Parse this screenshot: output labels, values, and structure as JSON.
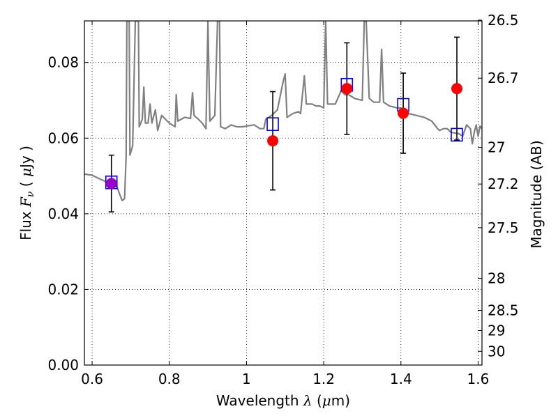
{
  "chart_data": {
    "type": "scatter",
    "title": "",
    "xlabel_parts": [
      "Wavelength  ",
      "λ",
      " (",
      "μ",
      "m)"
    ],
    "ylabel_parts": [
      "Flux  ",
      "F",
      "ν",
      "  ( ",
      "μ",
      "Jy )"
    ],
    "y2label": "Magnitude (AB)",
    "xlim": [
      0.58,
      1.61
    ],
    "ylim": [
      0.0,
      0.091
    ],
    "grid": true,
    "x_ticks": [
      {
        "v": 0.6,
        "label": "0.6"
      },
      {
        "v": 0.8,
        "label": "0.8"
      },
      {
        "v": 1.0,
        "label": "1"
      },
      {
        "v": 1.2,
        "label": "1.2"
      },
      {
        "v": 1.4,
        "label": "1.4"
      },
      {
        "v": 1.6,
        "label": "1.6"
      }
    ],
    "y_ticks": [
      {
        "v": 0.0,
        "label": "0.00"
      },
      {
        "v": 0.02,
        "label": "0.02"
      },
      {
        "v": 0.04,
        "label": "0.04"
      },
      {
        "v": 0.06,
        "label": "0.06"
      },
      {
        "v": 0.08,
        "label": "0.08"
      }
    ],
    "y2_ticks": [
      "26.5",
      "26.7",
      "27",
      "27.2",
      "27.5",
      "28",
      "28.5",
      "29",
      "30"
    ],
    "colors": {
      "spectrum": "#808080",
      "observed": "#ff0000",
      "model": "#0000ff",
      "overlap": "#9900cc",
      "errorbar": "#000000"
    },
    "series": [
      {
        "kind": "observed_photometry",
        "points": [
          {
            "x": 0.65,
            "y": 0.048,
            "err": 0.0075
          },
          {
            "x": 1.068,
            "y": 0.0593,
            "err": 0.013
          },
          {
            "x": 1.26,
            "y": 0.0731,
            "err": 0.0121
          },
          {
            "x": 1.406,
            "y": 0.0666,
            "err": 0.0106
          },
          {
            "x": 1.545,
            "y": 0.0731,
            "err": 0.0136
          }
        ]
      },
      {
        "kind": "model_photometry",
        "points": [
          {
            "x": 0.65,
            "y": 0.0483
          },
          {
            "x": 1.068,
            "y": 0.0637
          },
          {
            "x": 1.26,
            "y": 0.0741
          },
          {
            "x": 1.406,
            "y": 0.0688
          },
          {
            "x": 1.545,
            "y": 0.0609
          }
        ]
      },
      {
        "kind": "model_spectrum",
        "points": [
          [
            0.58,
            0.0505
          ],
          [
            0.6,
            0.0502
          ],
          [
            0.62,
            0.0492
          ],
          [
            0.64,
            0.0483
          ],
          [
            0.655,
            0.0478
          ],
          [
            0.665,
            0.047
          ],
          [
            0.672,
            0.045
          ],
          [
            0.678,
            0.0435
          ],
          [
            0.684,
            0.044
          ],
          [
            0.688,
            0.055
          ],
          [
            0.69,
            0.091
          ],
          [
            0.696,
            0.091
          ],
          [
            0.698,
            0.0555
          ],
          [
            0.705,
            0.058
          ],
          [
            0.712,
            0.091
          ],
          [
            0.72,
            0.091
          ],
          [
            0.722,
            0.063
          ],
          [
            0.73,
            0.065
          ],
          [
            0.734,
            0.0735
          ],
          [
            0.738,
            0.064
          ],
          [
            0.745,
            0.064
          ],
          [
            0.75,
            0.069
          ],
          [
            0.755,
            0.064
          ],
          [
            0.76,
            0.066
          ],
          [
            0.764,
            0.0675
          ],
          [
            0.77,
            0.062
          ],
          [
            0.78,
            0.066
          ],
          [
            0.8,
            0.064
          ],
          [
            0.815,
            0.063
          ],
          [
            0.818,
            0.0715
          ],
          [
            0.822,
            0.0645
          ],
          [
            0.84,
            0.0655
          ],
          [
            0.855,
            0.0652
          ],
          [
            0.86,
            0.072
          ],
          [
            0.864,
            0.066
          ],
          [
            0.875,
            0.065
          ],
          [
            0.885,
            0.064
          ],
          [
            0.895,
            0.0625
          ],
          [
            0.9,
            0.091
          ],
          [
            0.905,
            0.0645
          ],
          [
            0.918,
            0.066
          ],
          [
            0.925,
            0.091
          ],
          [
            0.93,
            0.091
          ],
          [
            0.933,
            0.063
          ],
          [
            0.945,
            0.0625
          ],
          [
            0.96,
            0.0635
          ],
          [
            0.975,
            0.063
          ],
          [
            0.99,
            0.063
          ],
          [
            1.0,
            0.0632
          ],
          [
            1.02,
            0.0635
          ],
          [
            1.035,
            0.0625
          ],
          [
            1.045,
            0.0625
          ],
          [
            1.05,
            0.065
          ],
          [
            1.065,
            0.066
          ],
          [
            1.08,
            0.0675
          ],
          [
            1.095,
            0.075
          ],
          [
            1.1,
            0.077
          ],
          [
            1.105,
            0.0655
          ],
          [
            1.12,
            0.0665
          ],
          [
            1.135,
            0.067
          ],
          [
            1.14,
            0.0665
          ],
          [
            1.15,
            0.0765
          ],
          [
            1.155,
            0.069
          ],
          [
            1.17,
            0.069
          ],
          [
            1.18,
            0.0685
          ],
          [
            1.19,
            0.0685
          ],
          [
            1.2,
            0.068
          ],
          [
            1.205,
            0.091
          ],
          [
            1.21,
            0.069
          ],
          [
            1.23,
            0.069
          ],
          [
            1.245,
            0.0725
          ],
          [
            1.255,
            0.0715
          ],
          [
            1.265,
            0.0715
          ],
          [
            1.28,
            0.0705
          ],
          [
            1.3,
            0.07
          ],
          [
            1.305,
            0.091
          ],
          [
            1.31,
            0.091
          ],
          [
            1.318,
            0.0705
          ],
          [
            1.33,
            0.0695
          ],
          [
            1.345,
            0.0695
          ],
          [
            1.35,
            0.0835
          ],
          [
            1.355,
            0.0695
          ],
          [
            1.37,
            0.0685
          ],
          [
            1.39,
            0.068
          ],
          [
            1.4,
            0.068
          ],
          [
            1.41,
            0.0672
          ],
          [
            1.42,
            0.0665
          ],
          [
            1.44,
            0.066
          ],
          [
            1.46,
            0.0655
          ],
          [
            1.48,
            0.0645
          ],
          [
            1.495,
            0.0625
          ],
          [
            1.5,
            0.062
          ],
          [
            1.51,
            0.0625
          ],
          [
            1.52,
            0.0625
          ],
          [
            1.53,
            0.0615
          ],
          [
            1.55,
            0.0612
          ],
          [
            1.56,
            0.0605
          ],
          [
            1.57,
            0.0635
          ],
          [
            1.58,
            0.0625
          ],
          [
            1.585,
            0.0585
          ],
          [
            1.59,
            0.0615
          ],
          [
            1.595,
            0.0635
          ],
          [
            1.6,
            0.0605
          ],
          [
            1.605,
            0.0632
          ],
          [
            1.61,
            0.0625
          ]
        ]
      }
    ]
  }
}
